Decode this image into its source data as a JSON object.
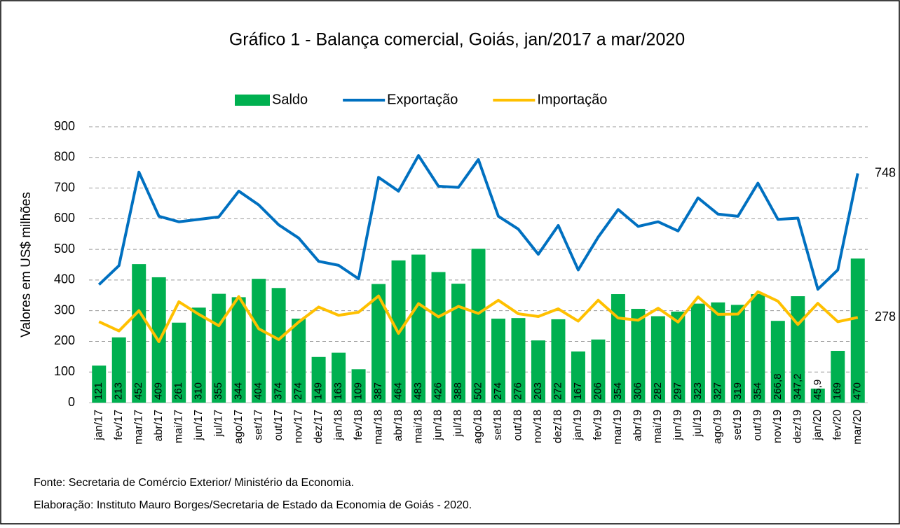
{
  "chart_data": {
    "type": "bar-line",
    "title": "Gráfico 1 - Balança comercial, Goiás, jan/2017 a mar/2020",
    "y_label": "Valores em  US$ milhões",
    "source": "Fonte: Secretaria de Comércio Exterior/ Ministério da Economia.",
    "credit": "Elaboração: Instituto Mauro Borges/Secretaria de Estado da Economia de Goiás - 2020.",
    "legend": "top",
    "grid": true,
    "ylim": [
      0,
      900
    ],
    "yticks": [
      0,
      100,
      200,
      300,
      400,
      500,
      600,
      700,
      800,
      900
    ],
    "categories": [
      "jan/17",
      "fev/17",
      "mar/17",
      "abr/17",
      "mai/17",
      "jun/17",
      "jul/17",
      "ago/17",
      "set/17",
      "out/17",
      "nov/17",
      "dez/17",
      "jan/18",
      "fev/18",
      "mar/18",
      "abr/18",
      "mai/18",
      "jun/18",
      "jul/18",
      "ago/18",
      "set/18",
      "out/18",
      "nov/18",
      "dez/18",
      "jan/19",
      "fev/19",
      "mar/19",
      "abr/19",
      "mai/19",
      "jun/19",
      "jul/19",
      "ago/19",
      "set/19",
      "out/19",
      "nov/19",
      "dez/19",
      "jan/20",
      "fev/20",
      "mar/20"
    ],
    "series": [
      {
        "name": "Saldo",
        "type": "bar",
        "color": "#00b050",
        "values": [
          121,
          213,
          452,
          409,
          261,
          310,
          355,
          344,
          404,
          374,
          274,
          149,
          163,
          109,
          387,
          464,
          483,
          426,
          388,
          502,
          274,
          276,
          203,
          272,
          167,
          206,
          354,
          306,
          282,
          297,
          323,
          327,
          319,
          354,
          266.8,
          347.2,
          45.9,
          169,
          470
        ],
        "value_labels": [
          "121",
          "213",
          "452",
          "409",
          "261",
          "310",
          "355",
          "344",
          "404",
          "374",
          "274",
          "149",
          "163",
          "109",
          "387",
          "464",
          "483",
          "426",
          "388",
          "502",
          "274",
          "276",
          "203",
          "272",
          "167",
          "206",
          "354",
          "306",
          "282",
          "297",
          "323",
          "327",
          "319",
          "354",
          "266,8",
          "347,2",
          "45,9",
          "169",
          "470"
        ]
      },
      {
        "name": "Exportação",
        "type": "line",
        "color": "#0070c0",
        "values": [
          385,
          447,
          752,
          608,
          590,
          598,
          606,
          690,
          645,
          580,
          537,
          461,
          448,
          404,
          735,
          690,
          806,
          706,
          702,
          793,
          608,
          566,
          484,
          578,
          433,
          540,
          630,
          575,
          590,
          560,
          668,
          615,
          608,
          716,
          598,
          602,
          370,
          433,
          748
        ]
      },
      {
        "name": "Importação",
        "type": "line",
        "color": "#ffc000",
        "values": [
          264,
          234,
          300,
          199,
          329,
          288,
          251,
          346,
          241,
          206,
          263,
          312,
          285,
          295,
          348,
          226,
          323,
          280,
          314,
          291,
          334,
          290,
          281,
          306,
          266,
          334,
          276,
          269,
          308,
          263,
          345,
          288,
          289,
          362,
          331,
          255,
          324,
          264,
          278
        ]
      }
    ]
  }
}
